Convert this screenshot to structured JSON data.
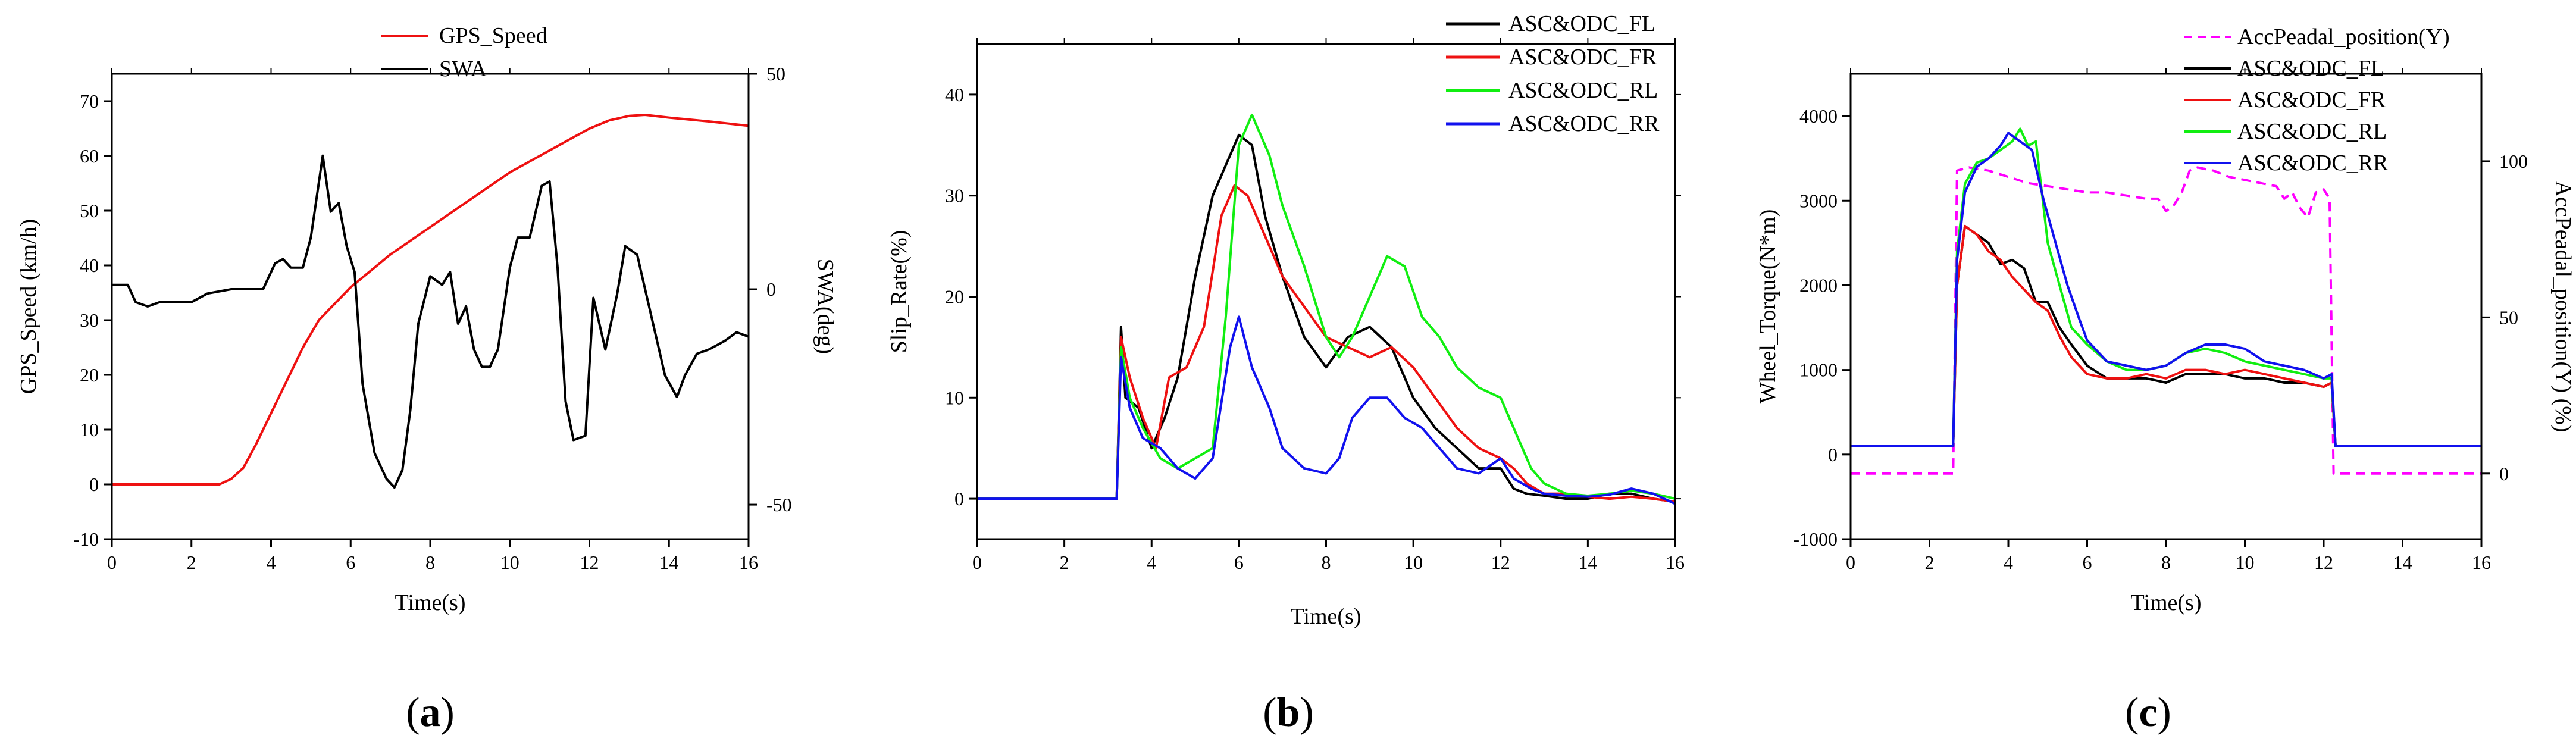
{
  "panel_labels": {
    "a": "a",
    "b": "b",
    "c": "c"
  },
  "colors": {
    "black": "#000000",
    "red": "#ee1111",
    "green": "#11ee11",
    "blue": "#1111ee",
    "magenta": "#ff00ff"
  },
  "chart_data": [
    {
      "id": "a",
      "type": "line",
      "title": "",
      "xlabel": "Time(s)",
      "ylabel": "GPS_Speed (km/h)",
      "y2label": "SWA(deg)",
      "xlim": [
        0,
        16
      ],
      "ylim": [
        -10,
        75
      ],
      "y2lim": [
        -58,
        50
      ],
      "xticks": [
        0,
        2,
        4,
        6,
        8,
        10,
        12,
        14,
        16
      ],
      "yticks": [
        -10,
        0,
        10,
        20,
        30,
        40,
        50,
        60,
        70
      ],
      "y2ticks": [
        -50,
        0,
        50
      ],
      "legend_position": "top-center",
      "series": [
        {
          "name": "GPS_Speed",
          "axis": "left",
          "color": "#ee1111",
          "x": [
            0,
            1,
            2,
            2.7,
            3.0,
            3.3,
            3.6,
            4.0,
            4.4,
            4.8,
            5.2,
            5.6,
            6.0,
            6.5,
            7.0,
            7.5,
            8.0,
            8.5,
            9.0,
            9.5,
            10.0,
            10.5,
            11.0,
            11.5,
            12.0,
            12.5,
            13.0,
            13.4,
            14.0,
            15.0,
            16.0
          ],
          "y": [
            0,
            0,
            0,
            0,
            1,
            3,
            7,
            13,
            19,
            25,
            30,
            33,
            36,
            39,
            42,
            44.5,
            47,
            49.5,
            52,
            54.5,
            57,
            59,
            61,
            63,
            65,
            66.5,
            67.3,
            67.5,
            67,
            66.3,
            65.5
          ]
        },
        {
          "name": "SWA",
          "axis": "right",
          "color": "#000000",
          "x": [
            0,
            0.4,
            0.6,
            0.9,
            1.2,
            2.0,
            2.4,
            3.0,
            3.8,
            4.1,
            4.3,
            4.5,
            4.8,
            5.0,
            5.3,
            5.5,
            5.7,
            5.9,
            6.1,
            6.3,
            6.6,
            6.9,
            7.1,
            7.3,
            7.5,
            7.7,
            8.0,
            8.3,
            8.5,
            8.7,
            8.9,
            9.1,
            9.3,
            9.5,
            9.7,
            10.0,
            10.2,
            10.5,
            10.8,
            11.0,
            11.2,
            11.4,
            11.6,
            11.9,
            12.1,
            12.4,
            12.7,
            12.9,
            13.2,
            13.4,
            13.7,
            13.9,
            14.2,
            14.4,
            14.7,
            15.0,
            15.2,
            15.4,
            15.7,
            16.0
          ],
          "y": [
            1,
            1,
            -3,
            -4,
            -3,
            -3,
            -1,
            0,
            0,
            6,
            7,
            5,
            5,
            12,
            31,
            18,
            20,
            10,
            4,
            -22,
            -38,
            -44,
            -46,
            -42,
            -28,
            -8,
            3,
            1,
            4,
            -8,
            -4,
            -14,
            -18,
            -18,
            -14,
            5,
            12,
            12,
            24,
            25,
            5,
            -26,
            -35,
            -34,
            -2,
            -14,
            -1,
            10,
            8,
            0,
            -12,
            -20,
            -25,
            -20,
            -15,
            -14,
            -13,
            -12,
            -10,
            -11
          ]
        }
      ]
    },
    {
      "id": "b",
      "type": "line",
      "title": "",
      "xlabel": "Time(s)",
      "ylabel": "Slip_Rate(%)",
      "xlim": [
        0,
        16
      ],
      "ylim": [
        -4,
        45
      ],
      "xticks": [
        0,
        2,
        4,
        6,
        8,
        10,
        12,
        14,
        16
      ],
      "yticks": [
        0,
        10,
        20,
        30,
        40
      ],
      "legend_position": "top-right",
      "series": [
        {
          "name": "ASC&ODC_FL",
          "color": "#000000",
          "x": [
            0,
            3.2,
            3.3,
            3.4,
            3.7,
            4.0,
            4.3,
            4.6,
            5.0,
            5.4,
            5.8,
            6.0,
            6.3,
            6.6,
            7.0,
            7.5,
            8.0,
            8.5,
            9.0,
            9.5,
            10.0,
            10.5,
            11.0,
            11.5,
            12.0,
            12.3,
            12.6,
            13.0,
            13.5,
            14.0,
            14.5,
            15.0,
            15.5,
            16.0
          ],
          "y": [
            0,
            0,
            17,
            10,
            9,
            5,
            8,
            12,
            22,
            30,
            34,
            36,
            35,
            28,
            22,
            16,
            13,
            16,
            17,
            15,
            10,
            7,
            5,
            3,
            3,
            1,
            0.5,
            0.3,
            0,
            0,
            0.5,
            0.5,
            0,
            -0.3
          ]
        },
        {
          "name": "ASC&ODC_FR",
          "color": "#ee1111",
          "x": [
            0,
            3.2,
            3.3,
            3.5,
            3.8,
            4.1,
            4.4,
            4.8,
            5.2,
            5.6,
            5.9,
            6.2,
            6.6,
            7.0,
            7.5,
            8.0,
            8.5,
            9.0,
            9.5,
            10.0,
            10.5,
            11.0,
            11.5,
            12.0,
            12.3,
            12.6,
            13.0,
            13.5,
            14.0,
            14.5,
            15.0,
            15.5,
            16.0
          ],
          "y": [
            0,
            0,
            16,
            12,
            8,
            5,
            12,
            13,
            17,
            28,
            31,
            30,
            26,
            22,
            19,
            16,
            15,
            14,
            15,
            13,
            10,
            7,
            5,
            4,
            3,
            1.5,
            0.5,
            0.5,
            0.2,
            0,
            0.2,
            0,
            -0.3
          ]
        },
        {
          "name": "ASC&ODC_RL",
          "color": "#11ee11",
          "x": [
            0,
            3.2,
            3.3,
            3.5,
            3.8,
            4.2,
            4.6,
            5.0,
            5.4,
            5.7,
            6.0,
            6.3,
            6.7,
            7.0,
            7.5,
            8.0,
            8.3,
            8.6,
            9.0,
            9.4,
            9.8,
            10.2,
            10.6,
            11.0,
            11.5,
            12.0,
            12.3,
            12.7,
            13.0,
            13.5,
            14.0,
            14.5,
            15.0,
            15.5,
            16.0
          ],
          "y": [
            0,
            0,
            15,
            10,
            7,
            4,
            3,
            4,
            5,
            18,
            35,
            38,
            34,
            29,
            23,
            16,
            14,
            16,
            20,
            24,
            23,
            18,
            16,
            13,
            11,
            10,
            7,
            3,
            1.5,
            0.5,
            0.3,
            0.5,
            0.8,
            0.5,
            0
          ]
        },
        {
          "name": "ASC&ODC_RR",
          "color": "#1111ee",
          "x": [
            0,
            3.2,
            3.3,
            3.5,
            3.8,
            4.2,
            4.6,
            5.0,
            5.4,
            5.8,
            6.0,
            6.3,
            6.7,
            7.0,
            7.5,
            8.0,
            8.3,
            8.6,
            9.0,
            9.4,
            9.8,
            10.2,
            10.6,
            11.0,
            11.5,
            12.0,
            12.3,
            12.7,
            13.0,
            13.5,
            14.0,
            14.5,
            15.0,
            15.5,
            16.0
          ],
          "y": [
            0,
            0,
            14,
            9,
            6,
            5,
            3,
            2,
            4,
            15,
            18,
            13,
            9,
            5,
            3,
            2.5,
            4,
            8,
            10,
            10,
            8,
            7,
            5,
            3,
            2.5,
            4,
            2,
            1,
            0.5,
            0.3,
            0.2,
            0.4,
            1,
            0.5,
            -0.5
          ]
        }
      ]
    },
    {
      "id": "c",
      "type": "line",
      "title": "",
      "xlabel": "Time(s)",
      "ylabel": "Wheel_Torque(N*m)",
      "y2label": "AccPeadal_position(Y) (%)",
      "xlim": [
        0,
        16
      ],
      "ylim": [
        -1000,
        4500
      ],
      "y2lim": [
        -21,
        128
      ],
      "xticks": [
        0,
        2,
        4,
        6,
        8,
        10,
        12,
        14,
        16
      ],
      "yticks": [
        -1000,
        0,
        1000,
        2000,
        3000,
        4000
      ],
      "y2ticks": [
        0,
        50,
        100
      ],
      "legend_position": "top-right",
      "series": [
        {
          "name": "AccPeadal_position(Y)",
          "axis": "right",
          "dashed": true,
          "color": "#ff00ff",
          "x": [
            0,
            2.6,
            2.7,
            3.0,
            3.5,
            4.0,
            4.5,
            5.0,
            5.5,
            6.0,
            6.5,
            7.0,
            7.5,
            7.8,
            8.0,
            8.2,
            8.4,
            8.6,
            8.8,
            9.2,
            9.6,
            10.0,
            10.4,
            10.8,
            11.0,
            11.2,
            11.4,
            11.6,
            11.8,
            12.0,
            12.15,
            12.25,
            12.4,
            16.0
          ],
          "y": [
            0,
            0,
            97,
            98,
            97,
            95,
            93,
            92,
            91,
            90,
            90,
            89,
            88,
            88,
            84,
            86,
            90,
            97,
            98,
            97,
            95,
            94,
            93,
            92,
            88,
            90,
            85,
            82,
            90,
            91,
            88,
            0,
            0,
            0
          ]
        },
        {
          "name": "ASC&ODC_FL",
          "axis": "left",
          "color": "#000000",
          "x": [
            0,
            2.6,
            2.7,
            2.9,
            3.2,
            3.5,
            3.8,
            4.1,
            4.4,
            4.7,
            5.0,
            5.3,
            5.6,
            6.0,
            6.5,
            7.0,
            7.5,
            8.0,
            8.5,
            9.0,
            9.5,
            10.0,
            10.5,
            11.0,
            11.5,
            12.0,
            12.2,
            12.3,
            16.0
          ],
          "y": [
            100,
            100,
            2000,
            2700,
            2600,
            2500,
            2250,
            2300,
            2200,
            1800,
            1800,
            1500,
            1300,
            1050,
            900,
            900,
            900,
            850,
            950,
            950,
            950,
            900,
            900,
            850,
            850,
            800,
            850,
            100,
            100
          ]
        },
        {
          "name": "ASC&ODC_FR",
          "axis": "left",
          "color": "#ee1111",
          "x": [
            0,
            2.6,
            2.7,
            2.9,
            3.2,
            3.5,
            3.8,
            4.1,
            4.4,
            4.7,
            5.0,
            5.3,
            5.6,
            6.0,
            6.5,
            7.0,
            7.5,
            8.0,
            8.5,
            9.0,
            9.5,
            10.0,
            10.5,
            11.0,
            11.5,
            12.0,
            12.2,
            12.3,
            16.0
          ],
          "y": [
            100,
            100,
            2000,
            2700,
            2600,
            2400,
            2300,
            2100,
            1950,
            1800,
            1700,
            1400,
            1150,
            950,
            900,
            900,
            950,
            900,
            1000,
            1000,
            950,
            1000,
            950,
            900,
            850,
            800,
            850,
            100,
            100
          ]
        },
        {
          "name": "ASC&ODC_RL",
          "axis": "left",
          "color": "#11ee11",
          "x": [
            0,
            2.6,
            2.7,
            2.9,
            3.2,
            3.5,
            3.8,
            4.1,
            4.3,
            4.5,
            4.7,
            5.0,
            5.3,
            5.6,
            6.0,
            6.5,
            7.0,
            7.5,
            8.0,
            8.5,
            9.0,
            9.5,
            10.0,
            10.5,
            11.0,
            11.5,
            12.0,
            12.2,
            12.3,
            16.0
          ],
          "y": [
            100,
            100,
            2400,
            3200,
            3450,
            3500,
            3600,
            3700,
            3850,
            3650,
            3700,
            2500,
            2000,
            1500,
            1300,
            1100,
            1000,
            1000,
            1050,
            1200,
            1250,
            1200,
            1100,
            1050,
            1000,
            950,
            900,
            900,
            100,
            100
          ]
        },
        {
          "name": "ASC&ODC_RR",
          "axis": "left",
          "color": "#1111ee",
          "x": [
            0,
            2.6,
            2.7,
            2.9,
            3.2,
            3.5,
            3.8,
            4.0,
            4.3,
            4.6,
            4.9,
            5.2,
            5.5,
            5.8,
            6.0,
            6.5,
            7.0,
            7.5,
            8.0,
            8.5,
            9.0,
            9.5,
            10.0,
            10.5,
            11.0,
            11.5,
            12.0,
            12.2,
            12.3,
            16.0
          ],
          "y": [
            100,
            100,
            2300,
            3100,
            3400,
            3500,
            3650,
            3800,
            3700,
            3600,
            3000,
            2500,
            2000,
            1600,
            1350,
            1100,
            1050,
            1000,
            1050,
            1200,
            1300,
            1300,
            1250,
            1100,
            1050,
            1000,
            900,
            950,
            100,
            100
          ]
        }
      ]
    }
  ]
}
